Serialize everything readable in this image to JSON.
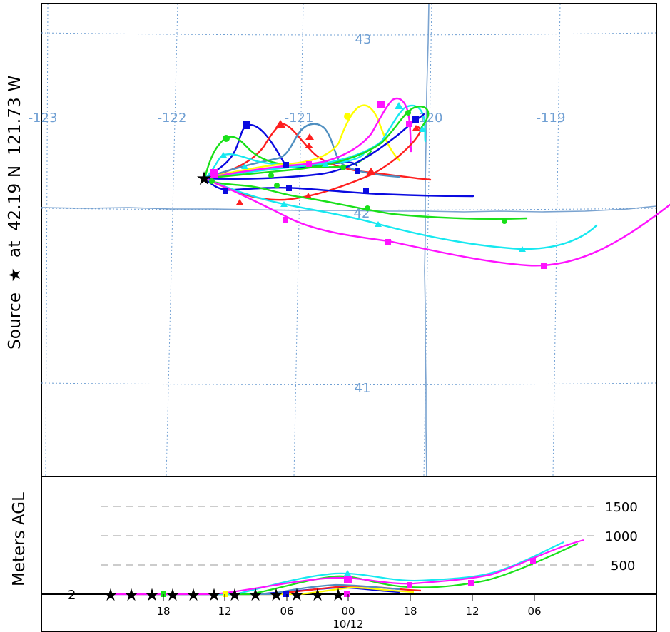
{
  "source_label": {
    "word": "Source",
    "star": "★",
    "at": "at",
    "lat": "42.19 N",
    "lon": "121.73 W"
  },
  "map": {
    "lon_labels": [
      "-123",
      "-122",
      "-121",
      "-120",
      "-119"
    ],
    "lat_labels": [
      "43",
      "42",
      "41"
    ],
    "colors": {
      "grid": "#6f9fd3",
      "border": "#7aa3d0",
      "red": "#ff1f1f",
      "blue": "#0a0ae0",
      "green": "#19e019",
      "cyan": "#16e8f0",
      "magenta": "#ff13ff",
      "yellow": "#ffff00",
      "steel": "#4f8fc0"
    }
  },
  "height_panel": {
    "ylabel": "Meters AGL",
    "levels": [
      "1500",
      "1000",
      "500"
    ],
    "base_label": "2",
    "time_ticks": [
      "18",
      "12",
      "06",
      "00",
      "18",
      "12",
      "06"
    ],
    "date_label": "10/12"
  }
}
